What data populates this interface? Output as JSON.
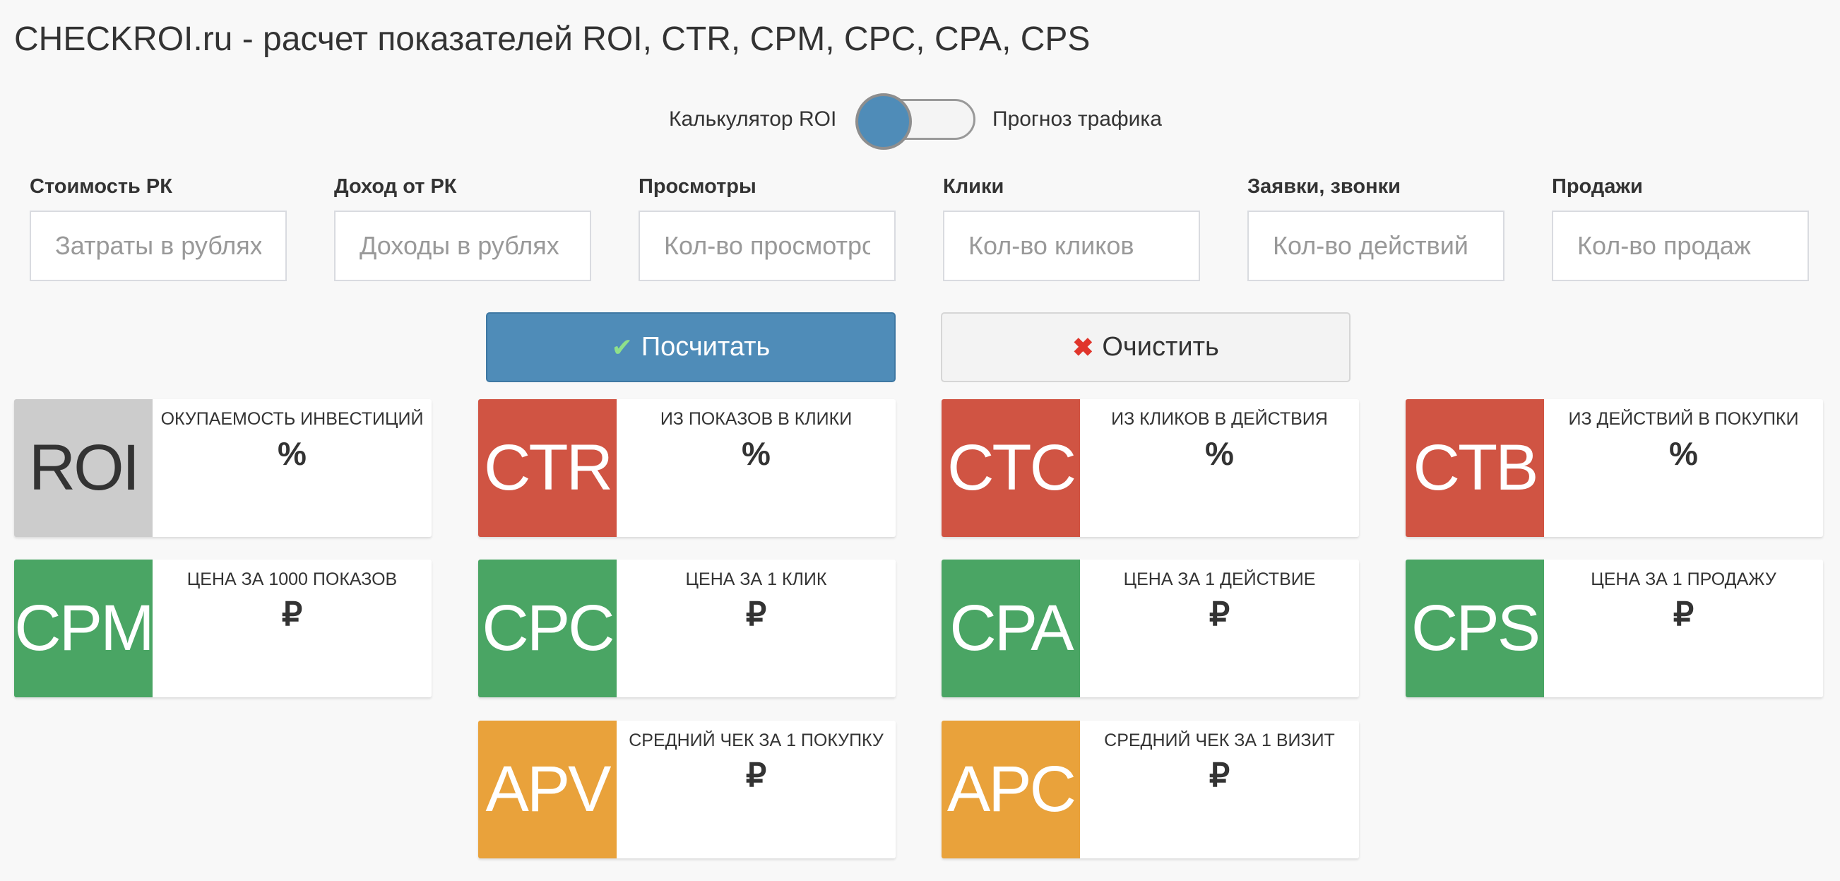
{
  "title": "CHECKROI.ru - расчет показателей ROI, CTR, CPM, CPC, CPA, CPS",
  "toggle": {
    "left_label": "Калькулятор ROI",
    "right_label": "Прогноз трафика",
    "state": "left",
    "color": "#4f8cb8"
  },
  "fields": [
    {
      "label": "Стоимость РК",
      "placeholder": "Затраты в рублях",
      "value": ""
    },
    {
      "label": "Доход от РК",
      "placeholder": "Доходы в рублях",
      "value": ""
    },
    {
      "label": "Просмотры",
      "placeholder": "Кол-во просмотров",
      "value": ""
    },
    {
      "label": "Клики",
      "placeholder": "Кол-во кликов",
      "value": ""
    },
    {
      "label": "Заявки, звонки",
      "placeholder": "Кол-во действий",
      "value": ""
    },
    {
      "label": "Продажи",
      "placeholder": "Кол-во продаж",
      "value": ""
    }
  ],
  "buttons": {
    "calculate": "Посчитать",
    "calculate_icon": "check-icon",
    "clear": "Очистить",
    "clear_icon": "x-icon"
  },
  "colors": {
    "roi": "#cccccc",
    "red": "#d05443",
    "green": "#4aa564",
    "orange": "#e9a23b"
  },
  "cards": [
    {
      "abbr": "ROI",
      "title": "ОКУПАЕМОСТЬ ИНВЕСТИЦИЙ",
      "value": "%"
    },
    {
      "abbr": "CTR",
      "title": "ИЗ ПОКАЗОВ В КЛИКИ",
      "value": "%"
    },
    {
      "abbr": "CTC",
      "title": "ИЗ КЛИКОВ В ДЕЙСТВИЯ",
      "value": "%"
    },
    {
      "abbr": "CTB",
      "title": "ИЗ ДЕЙСТВИЙ В ПОКУПКИ",
      "value": "%"
    },
    {
      "abbr": "CPM",
      "title": "ЦЕНА ЗА 1000 ПОКАЗОВ",
      "value": "₽"
    },
    {
      "abbr": "CPC",
      "title": "ЦЕНА ЗА 1 КЛИК",
      "value": "₽"
    },
    {
      "abbr": "CPA",
      "title": "ЦЕНА ЗА 1 ДЕЙСТВИЕ",
      "value": "₽"
    },
    {
      "abbr": "CPS",
      "title": "ЦЕНА ЗА 1 ПРОДАЖУ",
      "value": "₽"
    },
    {
      "abbr": "APV",
      "title": "СРЕДНИЙ ЧЕК ЗА 1 ПОКУПКУ",
      "value": "₽"
    },
    {
      "abbr": "APC",
      "title": "СРЕДНИЙ ЧЕК ЗА 1 ВИЗИТ",
      "value": "₽"
    }
  ]
}
